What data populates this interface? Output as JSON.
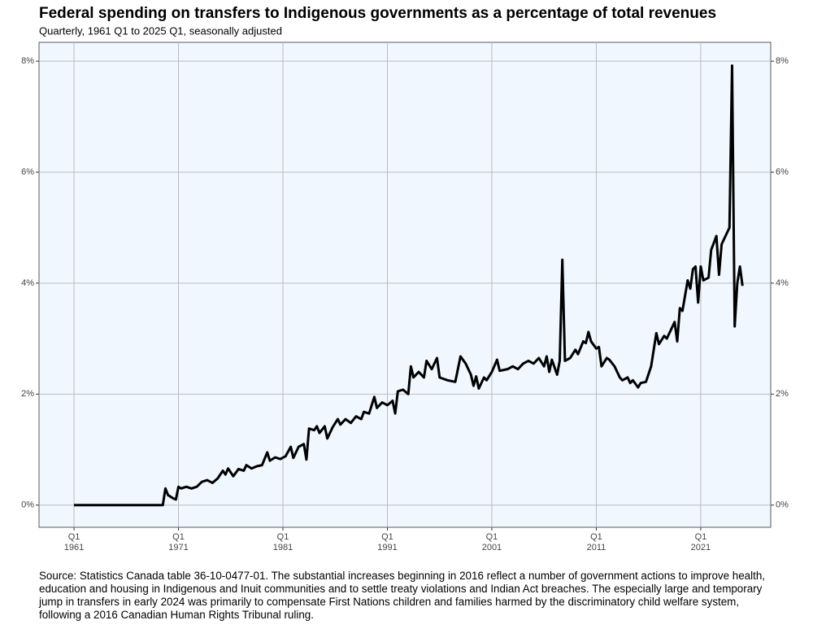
{
  "chart_data": {
    "type": "line",
    "title": "Federal spending on transfers to Indigenous governments as a percentage of total revenues",
    "subtitle": "Quarterly, 1961 Q1 to 2025 Q1, seasonally adjusted",
    "source": "Source: Statistics Canada table 36-10-0477-01. The substantial increases beginning in 2016 reflect a number of government actions to improve health, education and housing in Indigenous and Inuit communities and to settle treaty violations and Indian Act breaches. The especially large and temporary jump in transfers in early 2024 was primarily to compensate First Nations children and families harmed by the discriminatory child welfare system, following a 2016 Canadian Human Rights Tribunal ruling.",
    "color": "#000000",
    "x": [
      1961,
      1969.5,
      1969.75,
      1970,
      1970.5,
      1970.75,
      1971,
      1971.25,
      1971.75,
      1972.25,
      1972.75,
      1973.25,
      1973.75,
      1974.25,
      1974.75,
      1975.25,
      1975.5,
      1975.75,
      1976.25,
      1976.75,
      1977.25,
      1977.5,
      1978,
      1978.5,
      1979,
      1979.5,
      1979.75,
      1980.25,
      1980.75,
      1981.25,
      1981.75,
      1982,
      1982.5,
      1983,
      1983.25,
      1983.5,
      1984,
      1984.25,
      1984.5,
      1985,
      1985.25,
      1985.75,
      1986.25,
      1986.5,
      1987,
      1987.5,
      1988,
      1988.5,
      1988.75,
      1989.25,
      1989.75,
      1990,
      1990.5,
      1991,
      1991.5,
      1991.75,
      1992,
      1992.5,
      1993,
      1993.25,
      1993.5,
      1994,
      1994.5,
      1994.75,
      1995.25,
      1995.75,
      1996,
      1996.75,
      1997.5,
      1998,
      1998.5,
      1999,
      1999.25,
      1999.5,
      1999.75,
      2000.25,
      2000.5,
      2001,
      2001.5,
      2001.75,
      2002.5,
      2003,
      2003.5,
      2004,
      2004.5,
      2005,
      2005.5,
      2006,
      2006.25,
      2006.5,
      2006.75,
      2007.25,
      2007.5,
      2007.75,
      2008,
      2008.5,
      2009,
      2009.25,
      2009.75,
      2010,
      2010.25,
      2010.5,
      2011,
      2011.25,
      2011.5,
      2012,
      2012.25,
      2012.75,
      2013.25,
      2013.5,
      2014,
      2014.25,
      2014.5,
      2015,
      2015.25,
      2015.75,
      2016.25,
      2016.5,
      2016.75,
      2017,
      2017.5,
      2017.75,
      2018.25,
      2018.5,
      2018.75,
      2019,
      2019.25,
      2019.75,
      2020,
      2020.25,
      2020.5,
      2020.75,
      2021,
      2021.25,
      2021.75,
      2022,
      2022.5,
      2022.75,
      2023,
      2023.75,
      2024,
      2024.25,
      2024.5,
      2024.75,
      2025
    ],
    "values": [
      0,
      0,
      0.3,
      0.18,
      0.12,
      0.1,
      0.33,
      0.3,
      0.33,
      0.3,
      0.33,
      0.42,
      0.45,
      0.4,
      0.48,
      0.62,
      0.55,
      0.66,
      0.52,
      0.65,
      0.62,
      0.72,
      0.66,
      0.7,
      0.72,
      0.95,
      0.8,
      0.86,
      0.83,
      0.88,
      1.05,
      0.85,
      1.05,
      1.1,
      0.82,
      1.38,
      1.35,
      1.42,
      1.3,
      1.42,
      1.2,
      1.4,
      1.55,
      1.45,
      1.55,
      1.48,
      1.6,
      1.55,
      1.68,
      1.65,
      1.95,
      1.75,
      1.85,
      1.8,
      1.88,
      1.65,
      2.05,
      2.08,
      2.0,
      2.5,
      2.3,
      2.4,
      2.3,
      2.6,
      2.45,
      2.65,
      2.3,
      2.25,
      2.22,
      2.68,
      2.55,
      2.35,
      2.15,
      2.32,
      2.1,
      2.3,
      2.25,
      2.4,
      2.62,
      2.42,
      2.45,
      2.5,
      2.45,
      2.55,
      2.6,
      2.55,
      2.65,
      2.5,
      2.68,
      2.4,
      2.62,
      2.35,
      2.6,
      4.42,
      2.6,
      2.65,
      2.8,
      2.72,
      2.95,
      2.92,
      3.12,
      2.95,
      2.82,
      2.85,
      2.5,
      2.65,
      2.62,
      2.5,
      2.3,
      2.25,
      2.3,
      2.2,
      2.25,
      2.12,
      2.2,
      2.22,
      2.5,
      2.8,
      3.1,
      2.9,
      3.05,
      3.0,
      3.2,
      3.3,
      2.95,
      3.55,
      3.5,
      4.05,
      3.9,
      4.25,
      4.3,
      3.65,
      4.3,
      4.05,
      4.1,
      4.6,
      4.85,
      4.15,
      4.7,
      5.0,
      7.92,
      3.22,
      4.0,
      4.3,
      3.95
    ],
    "xlim": [
      1957.65,
      2027.7
    ],
    "xticks": [
      {
        "value": 1961,
        "label": "Q1\n1961"
      },
      {
        "value": 1971,
        "label": "Q1\n1971"
      },
      {
        "value": 1981,
        "label": "Q1\n1981"
      },
      {
        "value": 1991,
        "label": "Q1\n1991"
      },
      {
        "value": 2001,
        "label": "Q1\n2001"
      },
      {
        "value": 2011,
        "label": "Q1\n2011"
      },
      {
        "value": 2021,
        "label": "Q1\n2021"
      }
    ],
    "ylim": [
      -0.4,
      8.34
    ],
    "yticks": [
      {
        "value": 0,
        "label": "0%"
      },
      {
        "value": 2,
        "label": "2%"
      },
      {
        "value": 4,
        "label": "4%"
      },
      {
        "value": 6,
        "label": "6%"
      },
      {
        "value": 8,
        "label": "8%"
      }
    ],
    "grid": true
  }
}
